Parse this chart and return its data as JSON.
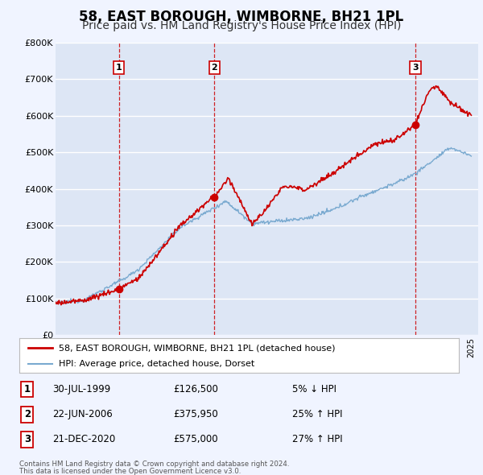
{
  "title": "58, EAST BOROUGH, WIMBORNE, BH21 1PL",
  "subtitle": "Price paid vs. HM Land Registry's House Price Index (HPI)",
  "ylim": [
    0,
    800000
  ],
  "yticks": [
    0,
    100000,
    200000,
    300000,
    400000,
    500000,
    600000,
    700000,
    800000
  ],
  "ytick_labels": [
    "£0",
    "£100K",
    "£200K",
    "£300K",
    "£400K",
    "£500K",
    "£600K",
    "£700K",
    "£800K"
  ],
  "background_color": "#f0f4ff",
  "plot_bg_color": "#dde6f5",
  "grid_color": "#ffffff",
  "red_line_color": "#cc0000",
  "blue_line_color": "#7aaad0",
  "title_fontsize": 12,
  "subtitle_fontsize": 10,
  "transactions": [
    {
      "label": "1",
      "date": "30-JUL-1999",
      "price": 126500,
      "x": 1999.58,
      "pct": "5%",
      "direction": "↓"
    },
    {
      "label": "2",
      "date": "22-JUN-2006",
      "price": 375950,
      "x": 2006.47,
      "pct": "25%",
      "direction": "↑"
    },
    {
      "label": "3",
      "date": "21-DEC-2020",
      "price": 575000,
      "x": 2020.97,
      "pct": "27%",
      "direction": "↑"
    }
  ],
  "legend_label_red": "58, EAST BOROUGH, WIMBORNE, BH21 1PL (detached house)",
  "legend_label_blue": "HPI: Average price, detached house, Dorset",
  "footer_line1": "Contains HM Land Registry data © Crown copyright and database right 2024.",
  "footer_line2": "This data is licensed under the Open Government Licence v3.0.",
  "table_rows": [
    [
      "1",
      "30-JUL-1999",
      "£126,500",
      "5% ↓ HPI"
    ],
    [
      "2",
      "22-JUN-2006",
      "£375,950",
      "25% ↑ HPI"
    ],
    [
      "3",
      "21-DEC-2020",
      "£575,000",
      "27% ↑ HPI"
    ]
  ]
}
